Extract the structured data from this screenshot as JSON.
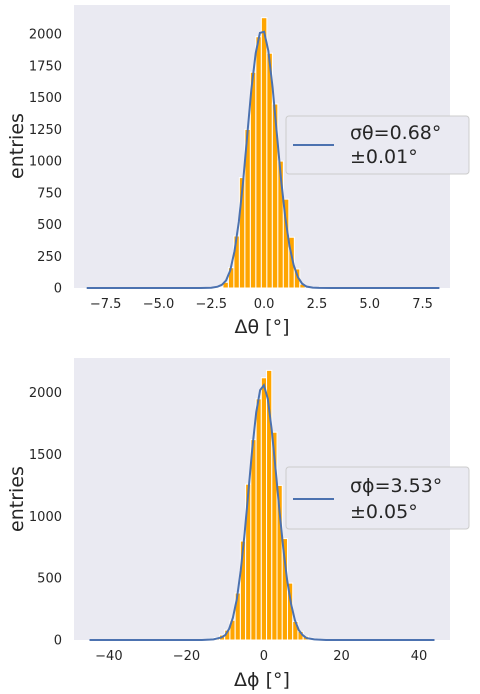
{
  "chart_data": [
    {
      "type": "bar",
      "panel": "top",
      "xlabel": "Δθ [°]",
      "ylabel": "entries",
      "xlim": [
        -9.0,
        8.8
      ],
      "ylim": [
        0,
        2230
      ],
      "xticks": [
        "−7.5",
        "−5.0",
        "−2.5",
        "0.0",
        "2.5",
        "5.0",
        "7.5"
      ],
      "xtick_values": [
        -7.5,
        -5.0,
        -2.5,
        0.0,
        2.5,
        5.0,
        7.5
      ],
      "yticks": [
        "0",
        "250",
        "500",
        "750",
        "1000",
        "1250",
        "1500",
        "1750",
        "2000"
      ],
      "ytick_values": [
        0,
        250,
        500,
        750,
        1000,
        1250,
        1500,
        1750,
        2000
      ],
      "grid": false,
      "bar_color": "#ffa500",
      "bin_width": 0.26,
      "bins": [
        {
          "x": -2.08,
          "y": 5
        },
        {
          "x": -1.82,
          "y": 45
        },
        {
          "x": -1.56,
          "y": 160
        },
        {
          "x": -1.3,
          "y": 410
        },
        {
          "x": -1.04,
          "y": 870
        },
        {
          "x": -0.78,
          "y": 1250
        },
        {
          "x": -0.52,
          "y": 1700
        },
        {
          "x": -0.26,
          "y": 1980
        },
        {
          "x": 0.0,
          "y": 2130
        },
        {
          "x": 0.26,
          "y": 1850
        },
        {
          "x": 0.52,
          "y": 1450
        },
        {
          "x": 0.78,
          "y": 1000
        },
        {
          "x": 1.04,
          "y": 700
        },
        {
          "x": 1.3,
          "y": 400
        },
        {
          "x": 1.56,
          "y": 150
        },
        {
          "x": 1.82,
          "y": 30
        }
      ],
      "series": [
        {
          "legend": [
            "σθ=0.68°",
            "±0.01°"
          ],
          "color": "#4c72b0",
          "x": [
            -8.4,
            -3.0,
            -2.5,
            -2.2,
            -2.0,
            -1.8,
            -1.6,
            -1.4,
            -1.2,
            -1.0,
            -0.8,
            -0.6,
            -0.4,
            -0.2,
            0.0,
            0.2,
            0.4,
            0.6,
            0.8,
            1.0,
            1.2,
            1.4,
            1.6,
            1.8,
            2.0,
            2.3,
            2.6,
            3.2,
            8.3
          ],
          "y": [
            0,
            0,
            2,
            10,
            25,
            60,
            140,
            290,
            520,
            830,
            1200,
            1570,
            1850,
            2010,
            2020,
            1870,
            1580,
            1220,
            860,
            560,
            330,
            180,
            85,
            35,
            12,
            3,
            1,
            0,
            0
          ]
        }
      ],
      "legend_position": "right"
    },
    {
      "type": "bar",
      "panel": "bottom",
      "xlabel": "Δϕ [°]",
      "ylabel": "entries",
      "xlim": [
        -49,
        48
      ],
      "ylim": [
        0,
        2280
      ],
      "xticks": [
        "−40",
        "−20",
        "0",
        "20",
        "40"
      ],
      "xtick_values": [
        -40,
        -20,
        0,
        20,
        40
      ],
      "yticks": [
        "0",
        "500",
        "1000",
        "1500",
        "2000"
      ],
      "ytick_values": [
        0,
        500,
        1000,
        1500,
        2000
      ],
      "grid": false,
      "bar_color": "#ffa500",
      "bin_width": 1.35,
      "bins": [
        {
          "x": -13.5,
          "y": 10
        },
        {
          "x": -12.15,
          "y": 20
        },
        {
          "x": -10.8,
          "y": 40
        },
        {
          "x": -9.45,
          "y": 80
        },
        {
          "x": -8.1,
          "y": 160
        },
        {
          "x": -6.75,
          "y": 380
        },
        {
          "x": -5.4,
          "y": 800
        },
        {
          "x": -4.05,
          "y": 1260
        },
        {
          "x": -2.7,
          "y": 1620
        },
        {
          "x": -1.35,
          "y": 1950
        },
        {
          "x": 0.0,
          "y": 2120
        },
        {
          "x": 1.35,
          "y": 2180
        },
        {
          "x": 2.7,
          "y": 1680
        },
        {
          "x": 4.05,
          "y": 1250
        },
        {
          "x": 5.4,
          "y": 820
        },
        {
          "x": 6.75,
          "y": 460
        },
        {
          "x": 8.1,
          "y": 150
        },
        {
          "x": 9.45,
          "y": 70
        },
        {
          "x": 10.8,
          "y": 30
        },
        {
          "x": 12.15,
          "y": 15
        },
        {
          "x": 13.5,
          "y": 10
        },
        {
          "x": 14.85,
          "y": 5
        }
      ],
      "series": [
        {
          "legend": [
            "σϕ=3.53°",
            "±0.05°"
          ],
          "color": "#4c72b0",
          "x": [
            -45,
            -16,
            -13,
            -11,
            -10,
            -9,
            -8,
            -7,
            -6,
            -5,
            -4,
            -3,
            -2,
            -1,
            0,
            1,
            2,
            3,
            4,
            5,
            6,
            7,
            8,
            9,
            10,
            11,
            13,
            16,
            44
          ],
          "y": [
            0,
            0,
            5,
            20,
            40,
            90,
            180,
            330,
            560,
            860,
            1200,
            1550,
            1840,
            2020,
            2060,
            1950,
            1700,
            1380,
            1050,
            740,
            480,
            290,
            160,
            80,
            40,
            15,
            5,
            0,
            0
          ]
        }
      ],
      "legend_position": "right"
    }
  ]
}
